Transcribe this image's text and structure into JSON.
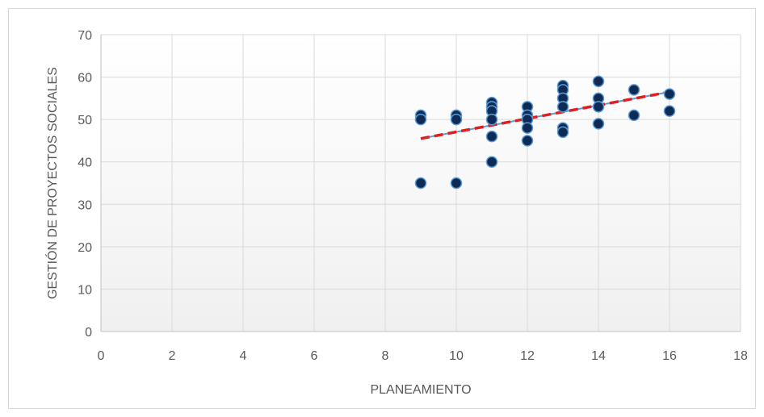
{
  "chart_data": {
    "type": "scatter",
    "title": "",
    "xlabel": "PLANEAMIENTO",
    "ylabel": "GESTIÓN DE PROYECTOS SOCIALES",
    "xlim": [
      0,
      18
    ],
    "ylim": [
      0,
      70
    ],
    "xticks": [
      0,
      2,
      4,
      6,
      8,
      10,
      12,
      14,
      16,
      18
    ],
    "yticks": [
      0,
      10,
      20,
      30,
      40,
      50,
      60,
      70
    ],
    "grid": true,
    "legend": "none",
    "colors": {
      "point_fill": "#0d2b55",
      "point_edge": "#5b9bd5",
      "fit_line": "#5b9bd5",
      "trend_line": "#e02020",
      "gridline": "#d9d9d9"
    },
    "series": [
      {
        "points": [
          [
            9,
            51
          ],
          [
            9,
            50
          ],
          [
            9,
            35
          ],
          [
            10,
            51
          ],
          [
            10,
            50
          ],
          [
            10,
            35
          ],
          [
            11,
            54
          ],
          [
            11,
            53
          ],
          [
            11,
            52
          ],
          [
            11,
            50
          ],
          [
            11,
            46
          ],
          [
            11,
            40
          ],
          [
            12,
            53
          ],
          [
            12,
            51
          ],
          [
            12,
            50
          ],
          [
            12,
            48
          ],
          [
            12,
            45
          ],
          [
            13,
            58
          ],
          [
            13,
            57
          ],
          [
            13,
            55
          ],
          [
            13,
            53
          ],
          [
            13,
            48
          ],
          [
            13,
            47
          ],
          [
            14,
            59
          ],
          [
            14,
            55
          ],
          [
            14,
            53
          ],
          [
            14,
            49
          ],
          [
            15,
            57
          ],
          [
            15,
            51
          ],
          [
            16,
            56
          ],
          [
            16,
            52
          ]
        ]
      }
    ],
    "trendline": {
      "x": [
        9,
        16
      ],
      "y": [
        45.5,
        56.5
      ]
    }
  }
}
